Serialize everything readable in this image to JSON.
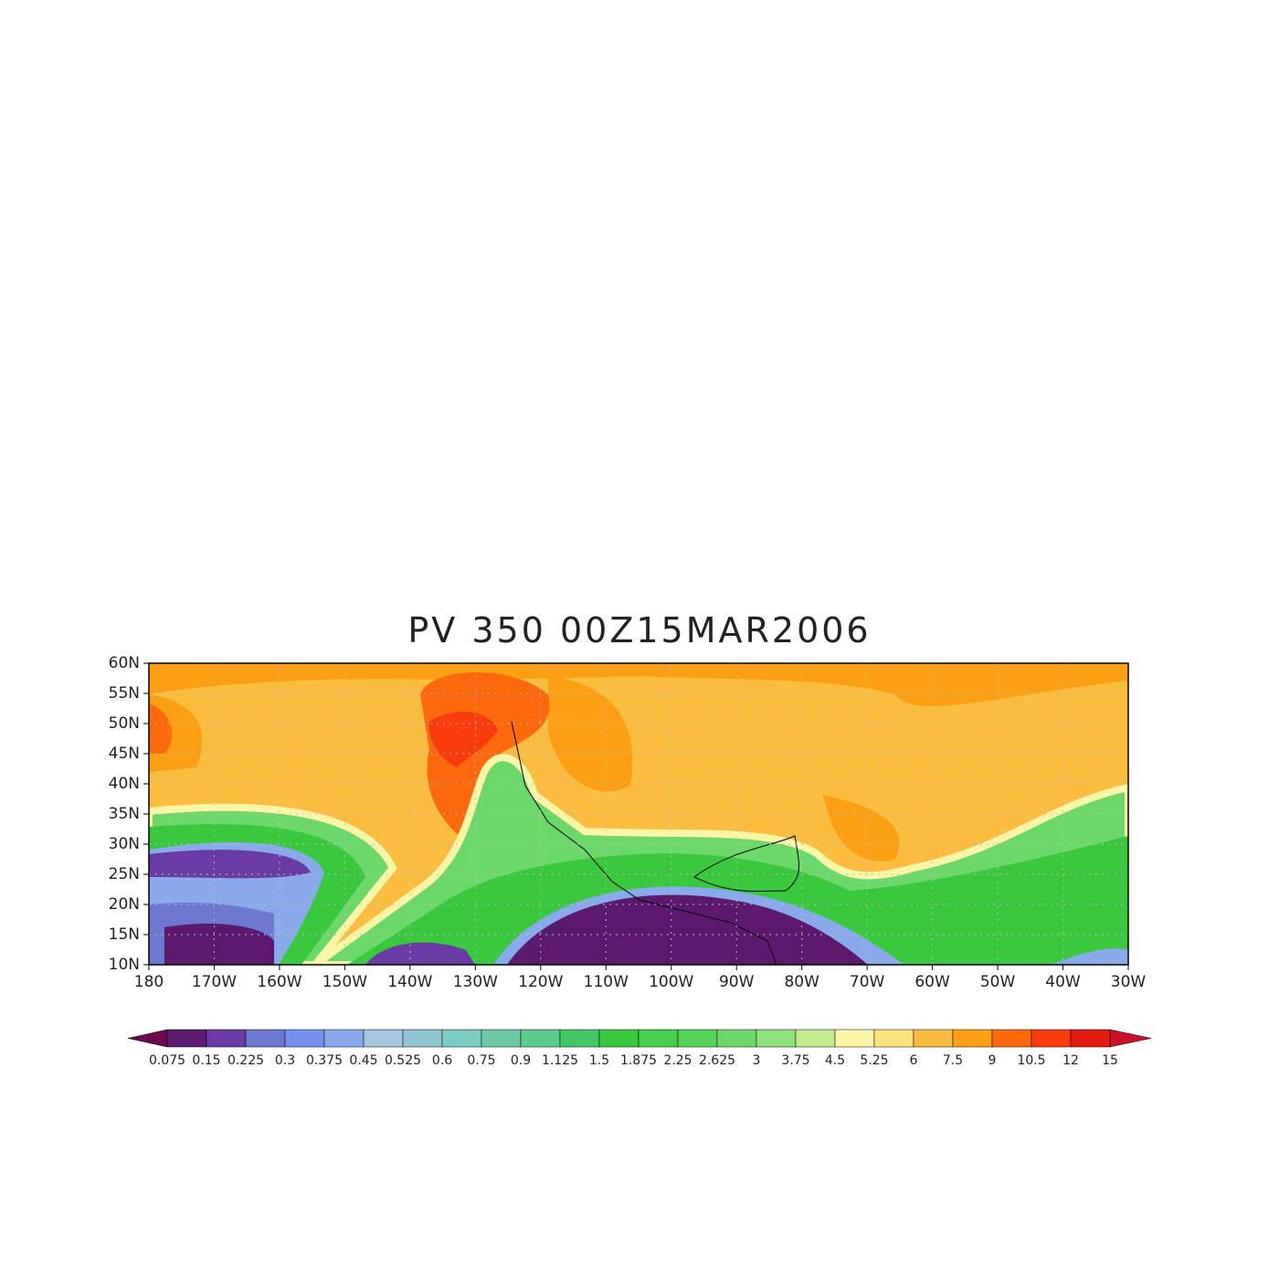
{
  "title": "PV 350 00Z15MAR2006",
  "x_axis": {
    "labels": [
      "180",
      "170W",
      "160W",
      "150W",
      "140W",
      "130W",
      "120W",
      "110W",
      "100W",
      "90W",
      "80W",
      "70W",
      "60W",
      "50W",
      "40W",
      "30W"
    ]
  },
  "y_axis": {
    "labels": [
      "10N",
      "15N",
      "20N",
      "25N",
      "30N",
      "35N",
      "40N",
      "45N",
      "50N",
      "55N",
      "60N"
    ]
  },
  "colorbar": {
    "labels": [
      "0.075",
      "0.15",
      "0.225",
      "0.3",
      "0.375",
      "0.45",
      "0.525",
      "0.6",
      "0.75",
      "0.9",
      "1.125",
      "1.5",
      "1.875",
      "2.25",
      "2.625",
      "3",
      "3.75",
      "4.5",
      "5.25",
      "6",
      "7.5",
      "9",
      "10.5",
      "12",
      "15"
    ],
    "colors": [
      "#6b0a4f",
      "#5c1a6e",
      "#6a3aa5",
      "#6d78d0",
      "#7592f0",
      "#88aaeb",
      "#a5c4e0",
      "#8fc4d2",
      "#7bcdc4",
      "#6ec8a6",
      "#5acb8a",
      "#45c766",
      "#3ac83f",
      "#47cd4e",
      "#57d258",
      "#6cd86c",
      "#90e080",
      "#c2ec92",
      "#fbf5a8",
      "#fae37d",
      "#fbbd3f",
      "#fc9f15",
      "#fc6a0d",
      "#f93a0b",
      "#e21a10",
      "#c8102b"
    ]
  }
}
